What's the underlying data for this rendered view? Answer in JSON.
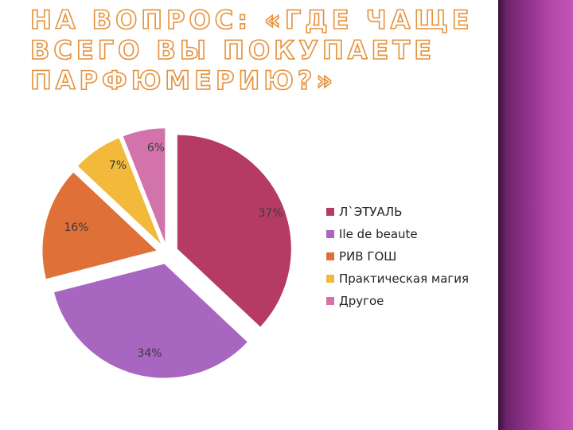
{
  "title": "НА ВОПРОС: «ГДЕ ЧАЩЕ ВСЕГО ВЫ ПОКУПАЕТЕ ПАРФЮМЕРИЮ?»",
  "chart_data": {
    "type": "pie",
    "title": "НА ВОПРОС: «ГДЕ ЧАЩЕ ВСЕГО ВЫ ПОКУПАЕТЕ ПАРФЮМЕРИЮ?»",
    "categories": [
      "Л`ЭТУАЛЬ",
      "Ile de beaute",
      "РИВ ГОШ",
      "Практическая магия",
      "Другое"
    ],
    "values": [
      37,
      34,
      16,
      7,
      6
    ],
    "labels": [
      "37%",
      "34%",
      "16%",
      "7%",
      "6%"
    ],
    "colors": [
      "#b53b65",
      "#a766c0",
      "#de7038",
      "#f3b93b",
      "#d273ab"
    ],
    "exploded": true,
    "legend_position": "right"
  }
}
